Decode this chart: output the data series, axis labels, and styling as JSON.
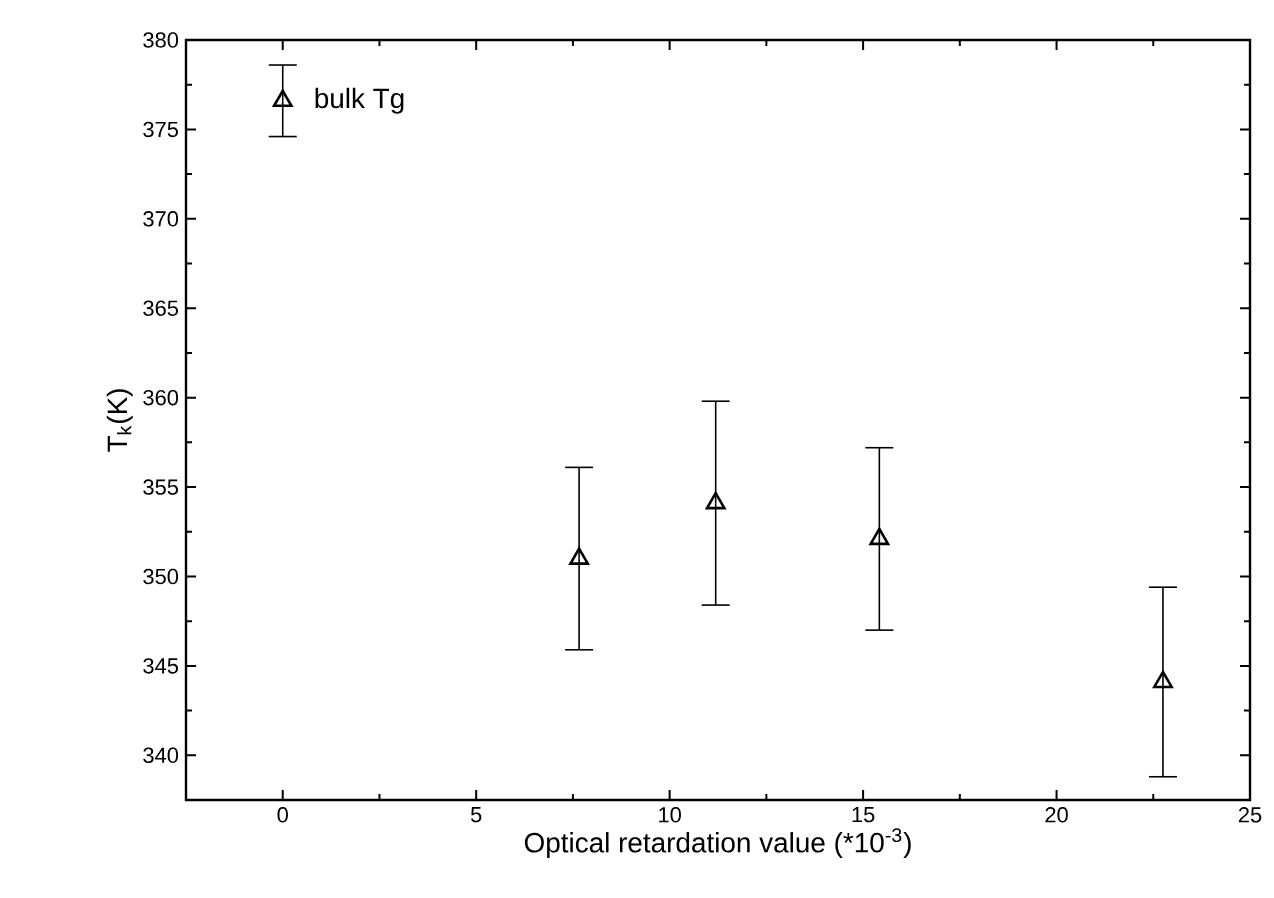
{
  "chart_data": {
    "type": "scatter",
    "xlabel": "Optical retardation value (*10$^{-3}$)",
    "ylabel": "T$_{k}$(K)",
    "x": [
      0,
      7.66,
      11.19,
      15.42,
      22.75
    ],
    "values": [
      376.6,
      351.0,
      354.1,
      352.1,
      344.1
    ],
    "errors": [
      2.0,
      5.1,
      5.7,
      5.1,
      5.3
    ],
    "color": "#000000",
    "marker": "triangle",
    "annotations": [
      {
        "text": "bulk Tg",
        "x": 0,
        "y": 376.6
      }
    ],
    "xlim": [
      -2.5,
      25
    ],
    "ylim": [
      337.5,
      380
    ],
    "xticks": [
      0,
      5,
      10,
      15,
      20,
      25
    ],
    "yticks": [
      340,
      345,
      350,
      355,
      360,
      365,
      370,
      375,
      380
    ],
    "grid": false
  }
}
